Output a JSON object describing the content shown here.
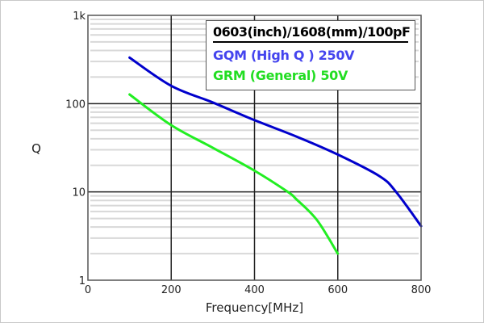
{
  "chart_data": {
    "type": "line",
    "title": "0603(inch)/1608(mm)/100pF",
    "xlabel": "Frequency[MHz]",
    "ylabel": "Q",
    "xlim": [
      0,
      800
    ],
    "ylim": [
      1,
      1000
    ],
    "yscale": "log",
    "grid": true,
    "legend_position": "top-right",
    "x_ticks": [
      "0",
      "200",
      "400",
      "600",
      "800"
    ],
    "y_ticks": [
      "1",
      "10",
      "100",
      "1k"
    ],
    "series": [
      {
        "name": "GQM (High Q ) 250V",
        "color": "#0000cc",
        "label_color": "#4444ee",
        "x": [
          100,
          200,
          300,
          400,
          500,
          600,
          700,
          740,
          800
        ],
        "y": [
          332,
          159,
          103,
          65,
          42.5,
          26.5,
          15.1,
          10,
          4.1
        ]
      },
      {
        "name": "GRM (General) 50V",
        "color": "#22ee22",
        "label_color": "#22dd22",
        "x": [
          100,
          200,
          300,
          400,
          480,
          500,
          550,
          600
        ],
        "y": [
          127,
          57,
          31.6,
          17.4,
          10,
          8.3,
          4.8,
          2.0
        ]
      }
    ]
  }
}
